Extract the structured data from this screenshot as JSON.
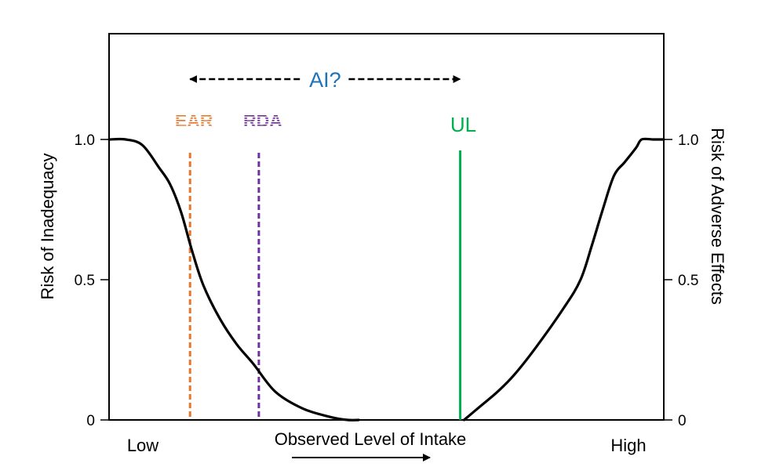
{
  "chart_data": {
    "type": "line",
    "ylabel_left": "Risk of Inadequacy",
    "ylabel_right": "Risk of Adverse Effects",
    "xlabel": "Observed Level of Intake",
    "x_low_label": "Low",
    "x_high_label": "High",
    "yticks_left": [
      "0",
      "0.5",
      "1.0"
    ],
    "yticks_right": [
      "0",
      "0.5",
      "1.0"
    ],
    "ylim": [
      0,
      1.0
    ],
    "xlim": [
      0,
      100
    ],
    "series": [
      {
        "color": "#000000",
        "x": [
          0,
          3,
          6,
          9,
          11,
          13,
          15,
          17,
          20,
          23,
          26,
          30,
          35,
          40,
          43,
          45
        ],
        "y": [
          1.0,
          1.0,
          0.98,
          0.9,
          0.84,
          0.74,
          0.6,
          0.48,
          0.36,
          0.27,
          0.2,
          0.1,
          0.04,
          0.01,
          0.0,
          0.0
        ]
      },
      {
        "color": "#000000",
        "x": [
          64,
          67,
          70,
          73,
          77,
          82,
          85,
          87,
          89,
          91,
          93,
          95,
          96,
          98,
          100
        ],
        "y": [
          0.0,
          0.05,
          0.1,
          0.16,
          0.26,
          0.4,
          0.5,
          0.62,
          0.75,
          0.87,
          0.92,
          0.97,
          1.0,
          1.0,
          1.0
        ]
      }
    ],
    "reference_lines": [
      {
        "label": "EAR",
        "x": 14.6,
        "color": "#e8762c",
        "style": "dashed"
      },
      {
        "label": "RDA",
        "x": 27.0,
        "color": "#7030a0",
        "style": "dashed"
      },
      {
        "label": "UL",
        "x": 63.3,
        "color": "#00b050",
        "style": "solid"
      }
    ],
    "ai_range": {
      "label": "AI?",
      "from": 14.6,
      "to": 63.3,
      "color": "#1f73b8"
    }
  }
}
